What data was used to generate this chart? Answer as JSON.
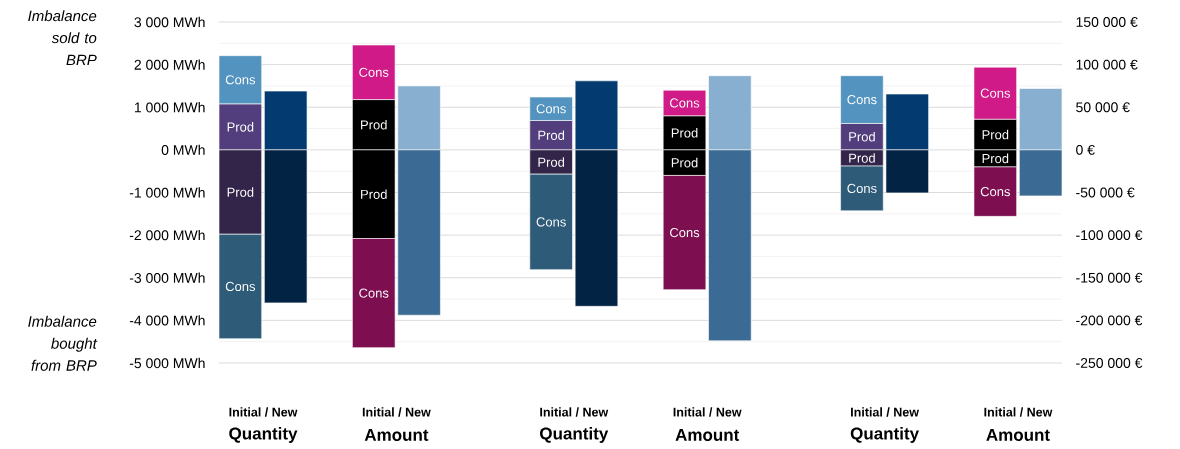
{
  "chart_data": {
    "type": "bar",
    "stacked": true,
    "grid": "y",
    "categories": [
      null,
      null,
      null,
      null,
      null,
      null,
      null,
      null,
      null,
      null,
      null,
      null
    ],
    "ylim": [
      -5000,
      3000
    ],
    "yticks": [
      {
        "value": -5000,
        "label": "-5 000 MWh"
      },
      {
        "value": -4000,
        "label": "-4 000 MWh"
      },
      {
        "value": -3000,
        "label": "-3 000 MWh"
      },
      {
        "value": -2000,
        "label": "-2 000 MWh"
      },
      {
        "value": -1000,
        "label": "-1 000 MWh"
      },
      {
        "value": 0,
        "label": "0 MWh"
      },
      {
        "value": 1000,
        "label": "1 000 MWh"
      },
      {
        "value": 2000,
        "label": "2 000 MWh"
      },
      {
        "value": 3000,
        "label": "3 000 MWh"
      }
    ],
    "y2lim": [
      -250000,
      150000
    ],
    "y2ticks": [
      {
        "value": -250000,
        "label": "-250 000 €"
      },
      {
        "value": -200000,
        "label": "-200 000 €"
      },
      {
        "value": -150000,
        "label": "-150 000 €"
      },
      {
        "value": -100000,
        "label": "-100 000 €"
      },
      {
        "value": -50000,
        "label": "-50 000 €"
      },
      {
        "value": 0,
        "label": "0 €"
      },
      {
        "value": 50000,
        "label": "50 000 €"
      },
      {
        "value": 100000,
        "label": "100 000 €"
      },
      {
        "value": 150000,
        "label": "150 000 €"
      }
    ],
    "annotations": [
      "Imbalance sold to BRP",
      "Imbalance bought from BRP",
      "Initial / New",
      "Quantity",
      "Initial / New",
      "Amount",
      "Initial / New",
      "Quantity",
      "Initial / New",
      "Amount",
      "Initial / New",
      "Quantity",
      "Initial / New",
      "Amount"
    ],
    "series": [
      {
        "name": "Prod",
        "color": "#523e7c",
        "values": [
          1080,
          null,
          null,
          null,
          690,
          null,
          null,
          null,
          620,
          null,
          null,
          null
        ]
      },
      {
        "name": "Cons",
        "color": "#5393bf",
        "values": [
          1130,
          null,
          null,
          null,
          550,
          null,
          null,
          null,
          1120,
          null,
          null,
          null
        ]
      },
      {
        "name": "Prod",
        "color": "#33254a",
        "values": [
          -1980,
          null,
          null,
          null,
          -570,
          null,
          null,
          null,
          -380,
          null,
          null,
          null
        ]
      },
      {
        "name": "Cons",
        "color": "#2e5b78",
        "values": [
          -2450,
          null,
          null,
          null,
          -2240,
          null,
          null,
          null,
          -1050,
          null,
          null,
          null
        ]
      },
      {
        "color": "#033a6f",
        "values": [
          null,
          1380,
          null,
          null,
          null,
          1620,
          null,
          null,
          null,
          1310,
          null,
          null
        ]
      },
      {
        "color": "#022344",
        "values": [
          null,
          -3590,
          null,
          null,
          null,
          -3670,
          null,
          null,
          null,
          -1010,
          null,
          null
        ]
      },
      {
        "name": "Prod",
        "color": "#000000",
        "axis": "y2",
        "values": [
          null,
          null,
          59000,
          null,
          null,
          null,
          40000,
          null,
          null,
          null,
          36000,
          null
        ]
      },
      {
        "name": "Cons",
        "color": "#cf1a88",
        "axis": "y2",
        "values": [
          null,
          null,
          64000,
          null,
          null,
          null,
          30000,
          null,
          null,
          null,
          61000,
          null
        ]
      },
      {
        "name": "Prod",
        "color": "#000000",
        "axis": "y2",
        "values": [
          null,
          null,
          -104000,
          null,
          null,
          null,
          -30000,
          null,
          null,
          null,
          -20000,
          null
        ]
      },
      {
        "name": "Cons",
        "color": "#7d0f51",
        "axis": "y2",
        "values": [
          null,
          null,
          -128000,
          null,
          null,
          null,
          -134000,
          null,
          null,
          null,
          -58000,
          null
        ]
      },
      {
        "color": "#89afd0",
        "axis": "y2",
        "values": [
          null,
          null,
          null,
          75000,
          null,
          null,
          null,
          87000,
          null,
          null,
          null,
          72000
        ]
      },
      {
        "color": "#3b6b94",
        "axis": "y2",
        "values": [
          null,
          null,
          null,
          -194000,
          null,
          null,
          null,
          -224000,
          null,
          null,
          null,
          -54000
        ]
      }
    ]
  }
}
